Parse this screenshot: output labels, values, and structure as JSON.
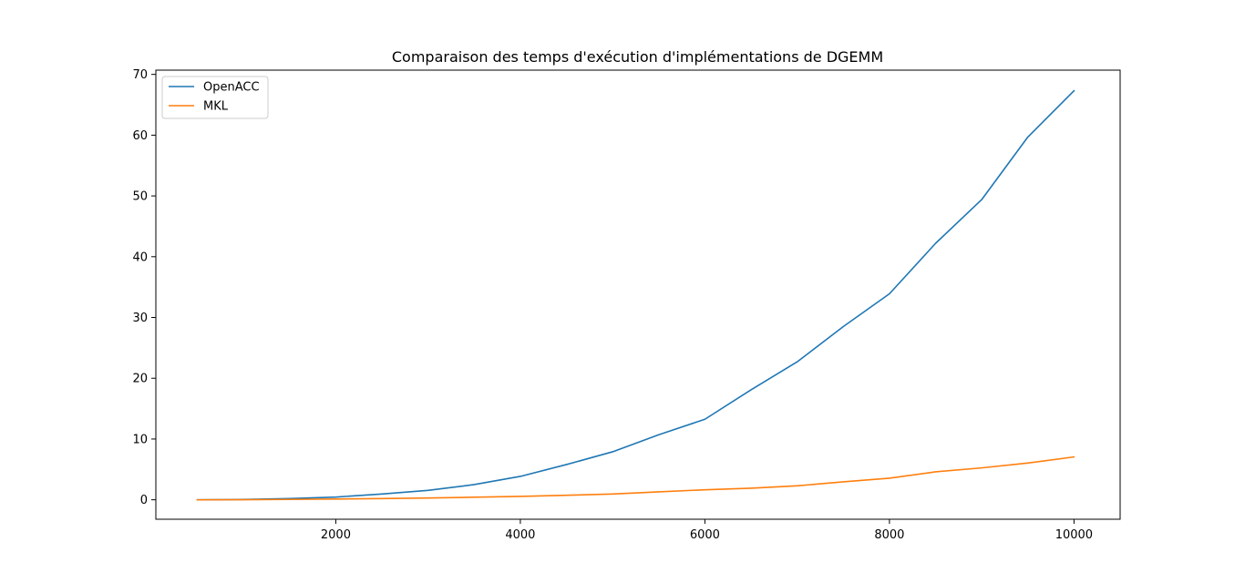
{
  "chart_data": {
    "type": "line",
    "title": "Comparaison des temps d'exécution d'implémentations de DGEMM",
    "xlabel": "",
    "ylabel": "",
    "xlim": [
      50,
      10500
    ],
    "ylim": [
      -3.2,
      70.7
    ],
    "xticks": [
      2000,
      4000,
      6000,
      8000,
      10000
    ],
    "yticks": [
      0,
      10,
      20,
      30,
      40,
      50,
      60,
      70
    ],
    "grid": false,
    "legend_position": "top-left",
    "x": [
      500,
      1000,
      1500,
      2000,
      2500,
      3000,
      3500,
      4000,
      4500,
      5000,
      5500,
      6000,
      6500,
      7000,
      7500,
      8000,
      8500,
      9000,
      9500,
      10000
    ],
    "series": [
      {
        "name": "OpenACC",
        "color": "#1f77b4",
        "values": [
          0.0,
          0.05,
          0.2,
          0.45,
          0.95,
          1.55,
          2.5,
          3.85,
          5.8,
          7.9,
          10.7,
          13.25,
          18.1,
          22.7,
          28.5,
          33.9,
          42.2,
          49.4,
          59.7,
          67.3
        ]
      },
      {
        "name": "MKL",
        "color": "#ff7f0e",
        "values": [
          0.0,
          0.02,
          0.06,
          0.13,
          0.2,
          0.3,
          0.42,
          0.55,
          0.75,
          0.95,
          1.3,
          1.65,
          1.9,
          2.3,
          2.95,
          3.55,
          4.6,
          5.25,
          6.05,
          7.05
        ]
      }
    ]
  }
}
